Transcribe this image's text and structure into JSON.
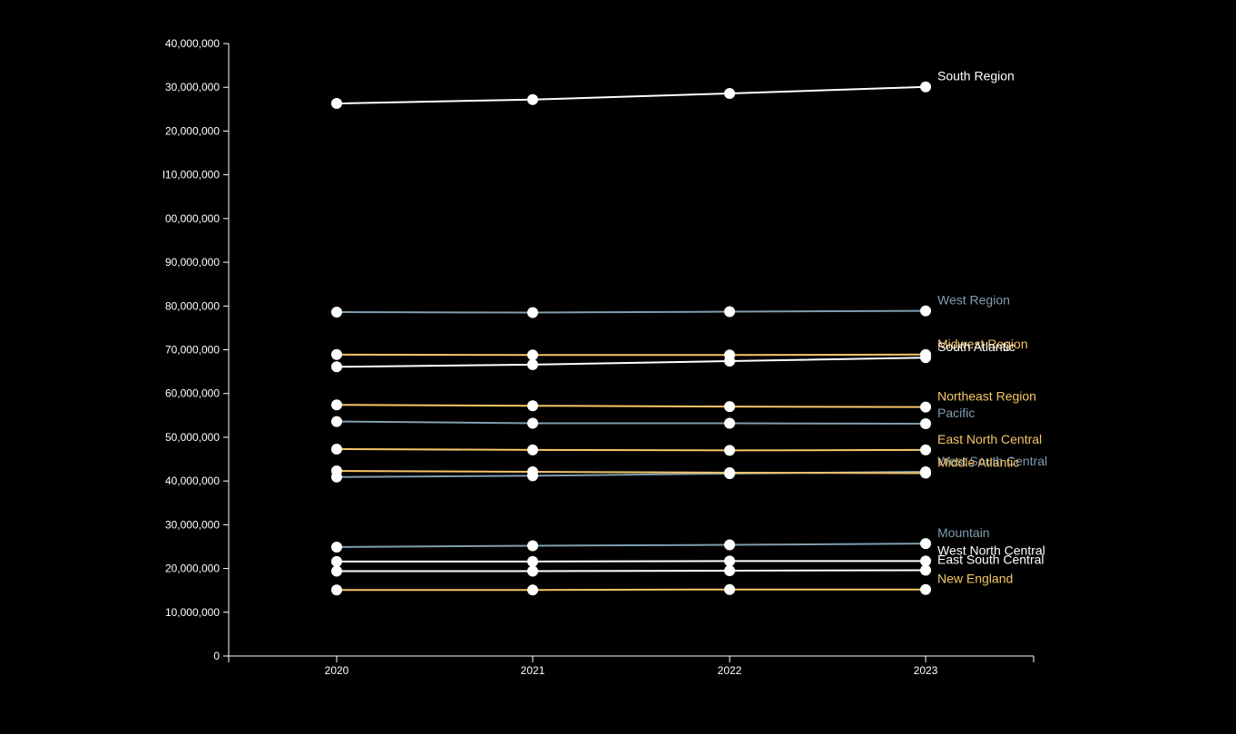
{
  "chart_data": {
    "type": "line",
    "x": [
      "2020",
      "2021",
      "2022",
      "2023"
    ],
    "ylim": [
      0,
      140000000
    ],
    "y_ticks": [
      "0",
      "10,000,000",
      "20,000,000",
      "30,000,000",
      "40,000,000",
      "50,000,000",
      "60,000,000",
      "70,000,000",
      "80,000,000",
      "90,000,000",
      "00,000,000",
      "l10,000,000",
      "20,000,000",
      "30,000,000",
      "40,000,000"
    ],
    "y_tick_values": [
      0,
      10000000,
      20000000,
      30000000,
      40000000,
      50000000,
      60000000,
      70000000,
      80000000,
      90000000,
      100000000,
      110000000,
      120000000,
      130000000,
      140000000
    ],
    "grid": false,
    "legend": "inline labels at line ends",
    "series": [
      {
        "name": "South Region",
        "color": "#ffffff",
        "values": [
          126300000,
          127200000,
          128600000,
          130100000
        ]
      },
      {
        "name": "West Region",
        "color": "#7f9db0",
        "values": [
          78600000,
          78500000,
          78700000,
          78900000
        ]
      },
      {
        "name": "Midwest Region",
        "color": "#f6c567",
        "values": [
          68900000,
          68800000,
          68800000,
          68900000
        ]
      },
      {
        "name": "South Atlantic",
        "color": "#ffffff",
        "values": [
          66100000,
          66600000,
          67400000,
          68200000
        ]
      },
      {
        "name": "Northeast Region",
        "color": "#f6c567",
        "values": [
          57400000,
          57200000,
          57000000,
          56900000
        ]
      },
      {
        "name": "Pacific",
        "color": "#7f9db0",
        "values": [
          53600000,
          53200000,
          53200000,
          53100000
        ]
      },
      {
        "name": "East North Central",
        "color": "#f6c567",
        "values": [
          47300000,
          47100000,
          47000000,
          47100000
        ]
      },
      {
        "name": "West South Central",
        "color": "#7f9db0",
        "values": [
          40900000,
          41200000,
          41700000,
          42100000
        ]
      },
      {
        "name": "Middle Atlantic",
        "color": "#f6c567",
        "values": [
          42300000,
          42100000,
          41900000,
          41800000
        ]
      },
      {
        "name": "Mountain",
        "color": "#7f9db0",
        "values": [
          24900000,
          25200000,
          25400000,
          25700000
        ]
      },
      {
        "name": "West North Central",
        "color": "#ffffff",
        "values": [
          21600000,
          21600000,
          21700000,
          21700000
        ]
      },
      {
        "name": "East South Central",
        "color": "#ffffff",
        "values": [
          19400000,
          19400000,
          19500000,
          19600000
        ]
      },
      {
        "name": "New England",
        "color": "#f6c567",
        "values": [
          15100000,
          15100000,
          15200000,
          15200000
        ]
      }
    ]
  }
}
